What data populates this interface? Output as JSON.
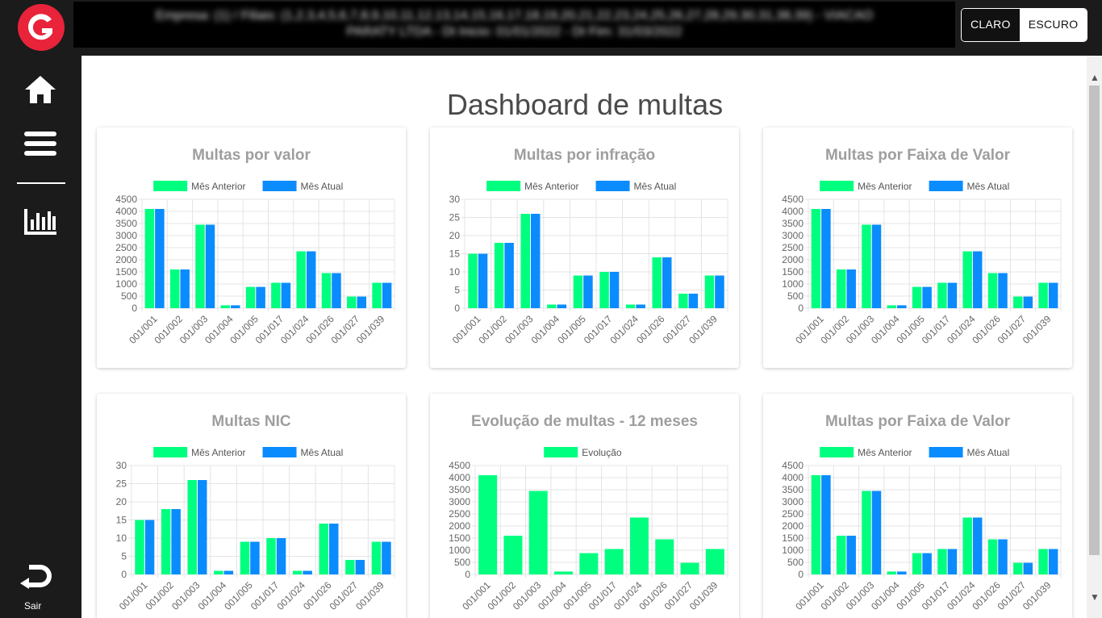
{
  "sidebar": {
    "logo_icon": "g-logo-icon",
    "items": [
      {
        "name": "home",
        "icon": "home-icon"
      },
      {
        "name": "menu",
        "icon": "menu-icon"
      },
      {
        "name": "reports",
        "icon": "bar-chart-icon"
      }
    ],
    "logout_label": "Sair"
  },
  "header": {
    "company_line1": "Empresa: (1) / Filiais: (1,2,3,4,5,6,7,8,9,10,11,12,13,14,15,16,17,18,19,20,21,22,23,24,25,26,27,28,29,30,31,38,39) - VIACAO",
    "company_line2": "PARATY LTDA - Dt Inicio: 01/01/2022 - Dt Fim: 31/03/2022",
    "theme_light": "CLARO",
    "theme_dark": "ESCURO"
  },
  "page_title": "Dashboard de multas",
  "colors": {
    "series1": "#00ff7f",
    "series2": "#0a8cff"
  },
  "chart_data": [
    {
      "type": "bar",
      "title": "Multas por valor",
      "categories": [
        "001/001",
        "001/002",
        "001/003",
        "001/004",
        "001/005",
        "001/017",
        "001/024",
        "001/026",
        "001/027",
        "001/039"
      ],
      "series": [
        {
          "name": "Mês Anterior",
          "values": [
            4100,
            1600,
            3450,
            120,
            880,
            1050,
            2350,
            1450,
            480,
            1050
          ]
        },
        {
          "name": "Mês Atual",
          "values": [
            4100,
            1600,
            3450,
            120,
            880,
            1050,
            2350,
            1450,
            480,
            1050
          ]
        }
      ],
      "ylim": [
        0,
        4500
      ],
      "yticks": [
        0,
        500,
        1000,
        1500,
        2000,
        2500,
        3000,
        3500,
        4000,
        4500
      ]
    },
    {
      "type": "bar",
      "title": "Multas por infração",
      "categories": [
        "001/001",
        "001/002",
        "001/003",
        "001/004",
        "001/005",
        "001/017",
        "001/024",
        "001/026",
        "001/027",
        "001/039"
      ],
      "series": [
        {
          "name": "Mês Anterior",
          "values": [
            15,
            18,
            26,
            1,
            9,
            10,
            1,
            14,
            4,
            9
          ]
        },
        {
          "name": "Mês Atual",
          "values": [
            15,
            18,
            26,
            1,
            9,
            10,
            1,
            14,
            4,
            9
          ]
        }
      ],
      "ylim": [
        0,
        30
      ],
      "yticks": [
        0,
        5,
        10,
        15,
        20,
        25,
        30
      ]
    },
    {
      "type": "bar",
      "title": "Multas por Faixa de Valor",
      "categories": [
        "001/001",
        "001/002",
        "001/003",
        "001/004",
        "001/005",
        "001/017",
        "001/024",
        "001/026",
        "001/027",
        "001/039"
      ],
      "series": [
        {
          "name": "Mês Anterior",
          "values": [
            4100,
            1600,
            3450,
            120,
            880,
            1050,
            2350,
            1450,
            480,
            1050
          ]
        },
        {
          "name": "Mês Atual",
          "values": [
            4100,
            1600,
            3450,
            120,
            880,
            1050,
            2350,
            1450,
            480,
            1050
          ]
        }
      ],
      "ylim": [
        0,
        4500
      ],
      "yticks": [
        0,
        500,
        1000,
        1500,
        2000,
        2500,
        3000,
        3500,
        4000,
        4500
      ]
    },
    {
      "type": "bar",
      "title": "Multas NIC",
      "categories": [
        "001/001",
        "001/002",
        "001/003",
        "001/004",
        "001/005",
        "001/017",
        "001/024",
        "001/026",
        "001/027",
        "001/039"
      ],
      "series": [
        {
          "name": "Mês Anterior",
          "values": [
            15,
            18,
            26,
            1,
            9,
            10,
            1,
            14,
            4,
            9
          ]
        },
        {
          "name": "Mês Atual",
          "values": [
            15,
            18,
            26,
            1,
            9,
            10,
            1,
            14,
            4,
            9
          ]
        }
      ],
      "ylim": [
        0,
        30
      ],
      "yticks": [
        0,
        5,
        10,
        15,
        20,
        25,
        30
      ]
    },
    {
      "type": "bar",
      "title": "Evolução de multas - 12 meses",
      "categories": [
        "001/001",
        "001/002",
        "001/003",
        "001/004",
        "001/005",
        "001/017",
        "001/024",
        "001/026",
        "001/027",
        "001/039"
      ],
      "series": [
        {
          "name": "Evolução",
          "values": [
            4100,
            1600,
            3450,
            120,
            880,
            1050,
            2350,
            1450,
            480,
            1050
          ]
        }
      ],
      "ylim": [
        0,
        4500
      ],
      "yticks": [
        0,
        500,
        1000,
        1500,
        2000,
        2500,
        3000,
        3500,
        4000,
        4500
      ]
    },
    {
      "type": "bar",
      "title": "Multas por Faixa de Valor",
      "categories": [
        "001/001",
        "001/002",
        "001/003",
        "001/004",
        "001/005",
        "001/017",
        "001/024",
        "001/026",
        "001/027",
        "001/039"
      ],
      "series": [
        {
          "name": "Mês Anterior",
          "values": [
            4100,
            1600,
            3450,
            120,
            880,
            1050,
            2350,
            1450,
            480,
            1050
          ]
        },
        {
          "name": "Mês Atual",
          "values": [
            4100,
            1600,
            3450,
            120,
            880,
            1050,
            2350,
            1450,
            480,
            1050
          ]
        }
      ],
      "ylim": [
        0,
        4500
      ],
      "yticks": [
        0,
        500,
        1000,
        1500,
        2000,
        2500,
        3000,
        3500,
        4000,
        4500
      ]
    }
  ]
}
